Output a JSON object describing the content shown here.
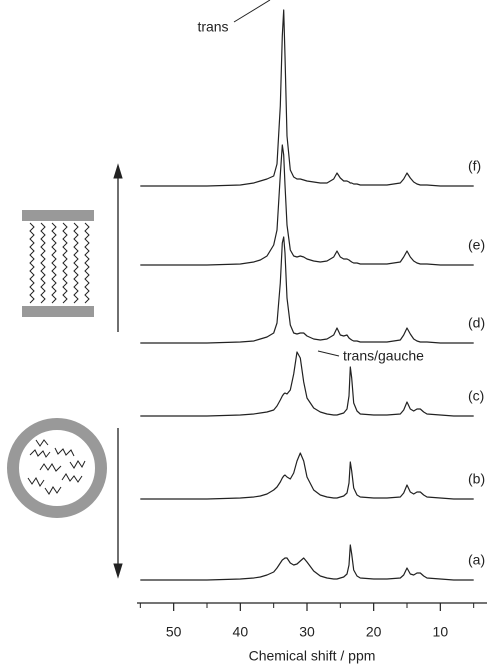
{
  "chart_data": {
    "type": "line",
    "x_label": "Chemical shift / ppm",
    "xlim": [
      55.5,
      3
    ],
    "xticks": [
      50,
      40,
      30,
      20,
      10
    ],
    "xminorticks": [
      55,
      45,
      35,
      25,
      15,
      5
    ],
    "color": "#222222",
    "annotations": [
      "trans",
      "trans/gauche"
    ],
    "x": [
      55,
      50,
      45,
      40,
      38,
      37,
      36,
      35,
      34.5,
      34,
      33.7,
      33.5,
      33.3,
      33,
      32.5,
      32,
      31.5,
      31,
      30.5,
      30,
      29,
      28,
      27,
      26,
      25.5,
      25,
      24.5,
      24,
      23.7,
      23.5,
      23.3,
      23,
      22.5,
      22,
      20,
      18,
      16,
      15.5,
      15,
      14.5,
      14,
      13.5,
      13,
      12.5,
      12,
      10,
      8,
      5
    ],
    "series": [
      {
        "name": "(a)",
        "values": [
          0,
          0,
          0,
          1,
          2,
          3,
          5,
          8,
          12,
          17,
          20,
          21,
          22,
          22,
          17,
          15,
          16,
          19,
          22,
          18,
          9,
          4,
          2,
          1,
          1,
          2,
          3,
          6,
          15,
          35,
          26,
          10,
          4,
          2,
          1,
          1,
          2,
          5,
          12,
          6,
          5,
          7,
          7,
          4,
          2,
          1,
          0,
          0
        ]
      },
      {
        "name": "(b)",
        "values": [
          0,
          0,
          0,
          1,
          2,
          3,
          5,
          9,
          12,
          17,
          21,
          23,
          24,
          22,
          20,
          26,
          38,
          46,
          38,
          22,
          9,
          4,
          2,
          1,
          1,
          2,
          3,
          6,
          16,
          37,
          28,
          11,
          4,
          2,
          1,
          1,
          2,
          6,
          14,
          7,
          5,
          7,
          7,
          4,
          2,
          1,
          0,
          0
        ]
      },
      {
        "name": "(c)",
        "values": [
          0,
          0,
          0,
          1,
          2,
          3,
          4,
          6,
          10,
          16,
          20,
          22,
          23,
          22,
          26,
          42,
          64,
          58,
          34,
          18,
          8,
          4,
          2,
          1,
          1,
          2,
          3,
          7,
          20,
          49,
          38,
          13,
          5,
          2,
          1,
          1,
          2,
          6,
          14,
          7,
          5,
          7,
          7,
          4,
          2,
          1,
          0,
          0
        ]
      },
      {
        "name": "(d)",
        "values": [
          0,
          0,
          0,
          1,
          2,
          4,
          6,
          10,
          20,
          60,
          100,
          106,
          90,
          45,
          18,
          10,
          9,
          10,
          10,
          7,
          4,
          3,
          4,
          8,
          15,
          8,
          7,
          8,
          5,
          4,
          3,
          2,
          2,
          1,
          1,
          1,
          3,
          8,
          15,
          9,
          4,
          2,
          1,
          1,
          1,
          0,
          0,
          0
        ]
      },
      {
        "name": "(e)",
        "values": [
          0,
          0,
          0,
          1,
          3,
          5,
          9,
          20,
          35,
          90,
          120,
          110,
          80,
          40,
          15,
          9,
          8,
          9,
          8,
          6,
          4,
          3,
          4,
          8,
          14,
          8,
          6,
          6,
          5,
          4,
          3,
          2,
          2,
          1,
          1,
          1,
          3,
          8,
          14,
          8,
          4,
          2,
          1,
          1,
          1,
          0,
          0,
          0
        ]
      },
      {
        "name": "(f)",
        "values": [
          0,
          0,
          0,
          1,
          3,
          5,
          7,
          10,
          22,
          80,
          150,
          176,
          130,
          50,
          16,
          9,
          7,
          7,
          6,
          5,
          4,
          3,
          3,
          7,
          13,
          8,
          5,
          5,
          4,
          3,
          3,
          2,
          2,
          1,
          1,
          1,
          3,
          7,
          13,
          8,
          4,
          2,
          1,
          1,
          1,
          0,
          0,
          0
        ]
      }
    ]
  }
}
